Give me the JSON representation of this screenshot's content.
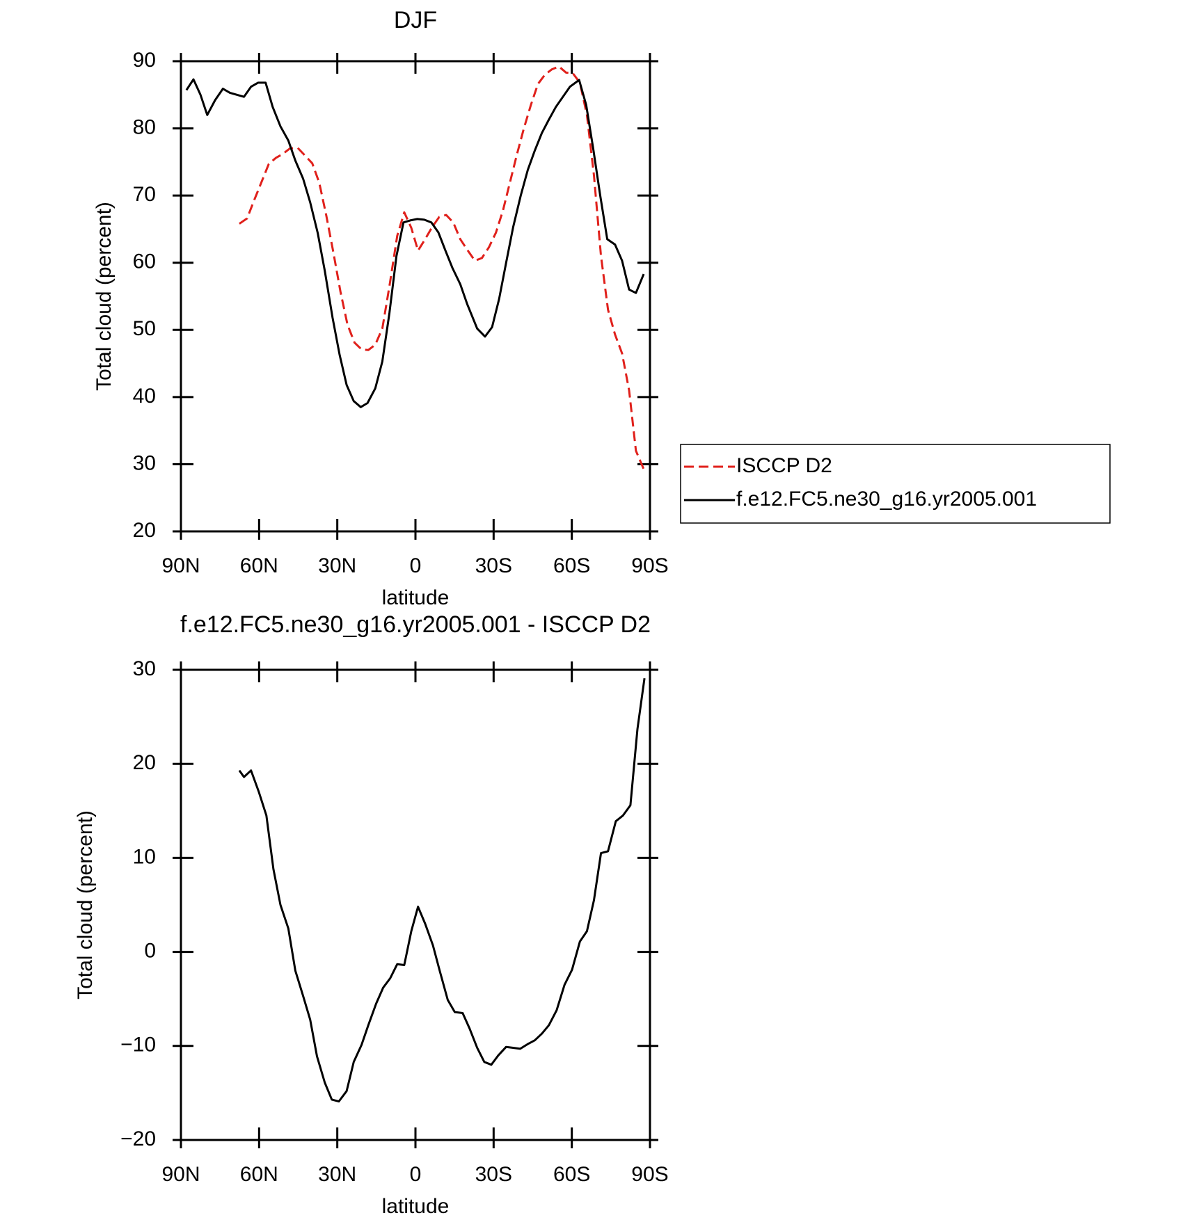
{
  "chart_data": [
    {
      "type": "line",
      "title": "DJF",
      "xlabel": "latitude",
      "ylabel": "Total cloud (percent)",
      "xlim": [
        90,
        -90
      ],
      "xticks": [
        {
          "value": 90,
          "label": "90N"
        },
        {
          "value": 60,
          "label": "60N"
        },
        {
          "value": 30,
          "label": "30N"
        },
        0,
        {
          "value": -30,
          "label": "30S"
        },
        {
          "value": -60,
          "label": "60S"
        },
        {
          "value": -90,
          "label": "90S"
        }
      ],
      "ylim": [
        20,
        90
      ],
      "yticks": [
        20,
        30,
        40,
        50,
        60,
        70,
        80,
        90
      ],
      "legend": "right",
      "series": [
        {
          "name": "ISCCP D2",
          "color": "#e0201b",
          "style": "dashed",
          "x": [
            67.6,
            64.6,
            61.9,
            58.9,
            56.3,
            53.6,
            50.9,
            48.2,
            45.2,
            42.5,
            39.6,
            36.9,
            34.2,
            31.5,
            28.8,
            26.1,
            23.4,
            20.7,
            18.1,
            15.4,
            12.7,
            10.0,
            7.0,
            4.3,
            1.6,
            -1.0,
            -3.7,
            -6.4,
            -9.1,
            -11.8,
            -14.5,
            -17.2,
            -20.1,
            -22.8,
            -25.5,
            -28.2,
            -30.9,
            -33.6,
            -36.3,
            -39.0,
            -41.6,
            -44.3,
            -47.0,
            -49.7,
            -52.4,
            -55.1,
            -57.8,
            -60.4,
            -63.1,
            -65.8,
            -68.5,
            -71.2,
            -73.9,
            -76.6,
            -79.3,
            -82.0,
            -84.6,
            -87.9
          ],
          "values": [
            65.8,
            66.6,
            69.3,
            72.2,
            74.7,
            75.6,
            76.2,
            77.0,
            77.1,
            76.0,
            74.8,
            71.9,
            67.0,
            61.5,
            55.7,
            50.8,
            48.1,
            47.1,
            47.0,
            47.8,
            50.2,
            56.5,
            64.0,
            67.5,
            65.2,
            61.8,
            63.5,
            65.3,
            66.8,
            67.1,
            66.0,
            63.5,
            61.8,
            60.3,
            60.7,
            62.3,
            64.5,
            67.8,
            72.0,
            76.2,
            80.0,
            83.5,
            86.6,
            88.0,
            88.8,
            89.2,
            88.3,
            88.2,
            86.8,
            82.0,
            73.0,
            61.0,
            53.0,
            49.3,
            46.5,
            41.0,
            32.0,
            29.0
          ]
        },
        {
          "name": "f.e12.FC5.ne30_g16.yr2005.001",
          "color": "#000000",
          "style": "solid",
          "x": [
            87.9,
            85.2,
            82.5,
            79.9,
            76.9,
            73.9,
            71.2,
            68.5,
            65.8,
            63.1,
            60.4,
            57.5,
            54.8,
            51.8,
            48.8,
            46.1,
            43.1,
            40.4,
            37.5,
            34.8,
            31.8,
            29.1,
            26.4,
            23.7,
            21.0,
            18.4,
            15.4,
            12.7,
            10.0,
            7.3,
            4.6,
            2.0,
            -0.7,
            -3.4,
            -6.1,
            -8.8,
            -11.5,
            -14.2,
            -17.2,
            -19.9,
            -23.7,
            -26.7,
            -29.4,
            -32.1,
            -34.8,
            -37.5,
            -40.4,
            -43.1,
            -45.8,
            -48.5,
            -51.2,
            -53.9,
            -56.6,
            -59.3,
            -62.8,
            -65.5,
            -68.2,
            -70.9,
            -73.6,
            -76.6,
            -79.3,
            -82.0,
            -84.6,
            -87.6
          ],
          "values": [
            85.7,
            87.3,
            85.0,
            82.0,
            84.2,
            85.9,
            85.3,
            85.0,
            84.7,
            86.2,
            86.8,
            86.8,
            83.2,
            80.3,
            78.2,
            75.2,
            72.5,
            69.0,
            64.4,
            58.8,
            51.8,
            46.3,
            41.8,
            39.4,
            38.5,
            39.1,
            41.3,
            45.3,
            52.5,
            61.0,
            66.0,
            66.3,
            66.5,
            66.4,
            66.0,
            64.5,
            61.8,
            59.2,
            56.8,
            53.8,
            50.2,
            49.0,
            50.4,
            54.6,
            60.0,
            65.3,
            70.0,
            73.8,
            76.7,
            79.3,
            81.3,
            83.2,
            84.7,
            86.2,
            87.2,
            83.5,
            77.0,
            70.0,
            63.5,
            62.7,
            60.3,
            56.0,
            55.5,
            58.3
          ]
        }
      ]
    },
    {
      "type": "line",
      "title": "f.e12.FC5.ne30_g16.yr2005.001 - ISCCP D2",
      "xlabel": "latitude",
      "ylabel": "Total cloud (percent)",
      "xlim": [
        90,
        -90
      ],
      "xticks": [
        {
          "value": 90,
          "label": "90N"
        },
        {
          "value": 60,
          "label": "60N"
        },
        {
          "value": 30,
          "label": "30N"
        },
        0,
        {
          "value": -30,
          "label": "30S"
        },
        {
          "value": -60,
          "label": "60S"
        },
        {
          "value": -90,
          "label": "90S"
        }
      ],
      "ylim": [
        -20,
        30
      ],
      "yticks": [
        {
          "value": -20,
          "label": "−20"
        },
        {
          "value": -10,
          "label": "−10"
        },
        0,
        10,
        20,
        30
      ],
      "series": [
        {
          "color": "#000000",
          "style": "solid",
          "x": [
            67.6,
            65.8,
            63.1,
            60.1,
            57.2,
            54.5,
            51.8,
            48.8,
            46.1,
            43.1,
            40.4,
            37.8,
            34.8,
            32.1,
            29.4,
            26.4,
            23.7,
            20.7,
            18.1,
            15.1,
            12.4,
            9.7,
            7.0,
            4.3,
            1.6,
            -1.0,
            -3.7,
            -6.7,
            -9.4,
            -12.4,
            -15.1,
            -18.1,
            -20.7,
            -23.7,
            -26.4,
            -29.1,
            -31.8,
            -34.8,
            -37.5,
            -40.2,
            -43.1,
            -45.8,
            -48.5,
            -51.2,
            -54.2,
            -57.2,
            -60.1,
            -63.1,
            -65.8,
            -68.5,
            -71.2,
            -73.9,
            -76.9,
            -79.6,
            -82.5,
            -85.2,
            -87.9
          ],
          "values": [
            19.3,
            18.6,
            19.3,
            17.0,
            14.5,
            8.8,
            5.0,
            2.5,
            -2.0,
            -4.7,
            -7.2,
            -11.1,
            -13.9,
            -15.7,
            -15.9,
            -14.8,
            -11.7,
            -9.9,
            -7.8,
            -5.5,
            -3.8,
            -2.8,
            -1.3,
            -1.4,
            2.2,
            4.8,
            3.0,
            0.7,
            -2.1,
            -5.1,
            -6.4,
            -6.5,
            -8.1,
            -10.2,
            -11.7,
            -12.0,
            -11.0,
            -10.1,
            -10.2,
            -10.3,
            -9.8,
            -9.4,
            -8.7,
            -7.8,
            -6.2,
            -3.5,
            -1.9,
            1.1,
            2.2,
            5.5,
            10.5,
            10.7,
            13.9,
            14.5,
            15.6,
            23.7,
            29.1
          ]
        }
      ]
    }
  ]
}
